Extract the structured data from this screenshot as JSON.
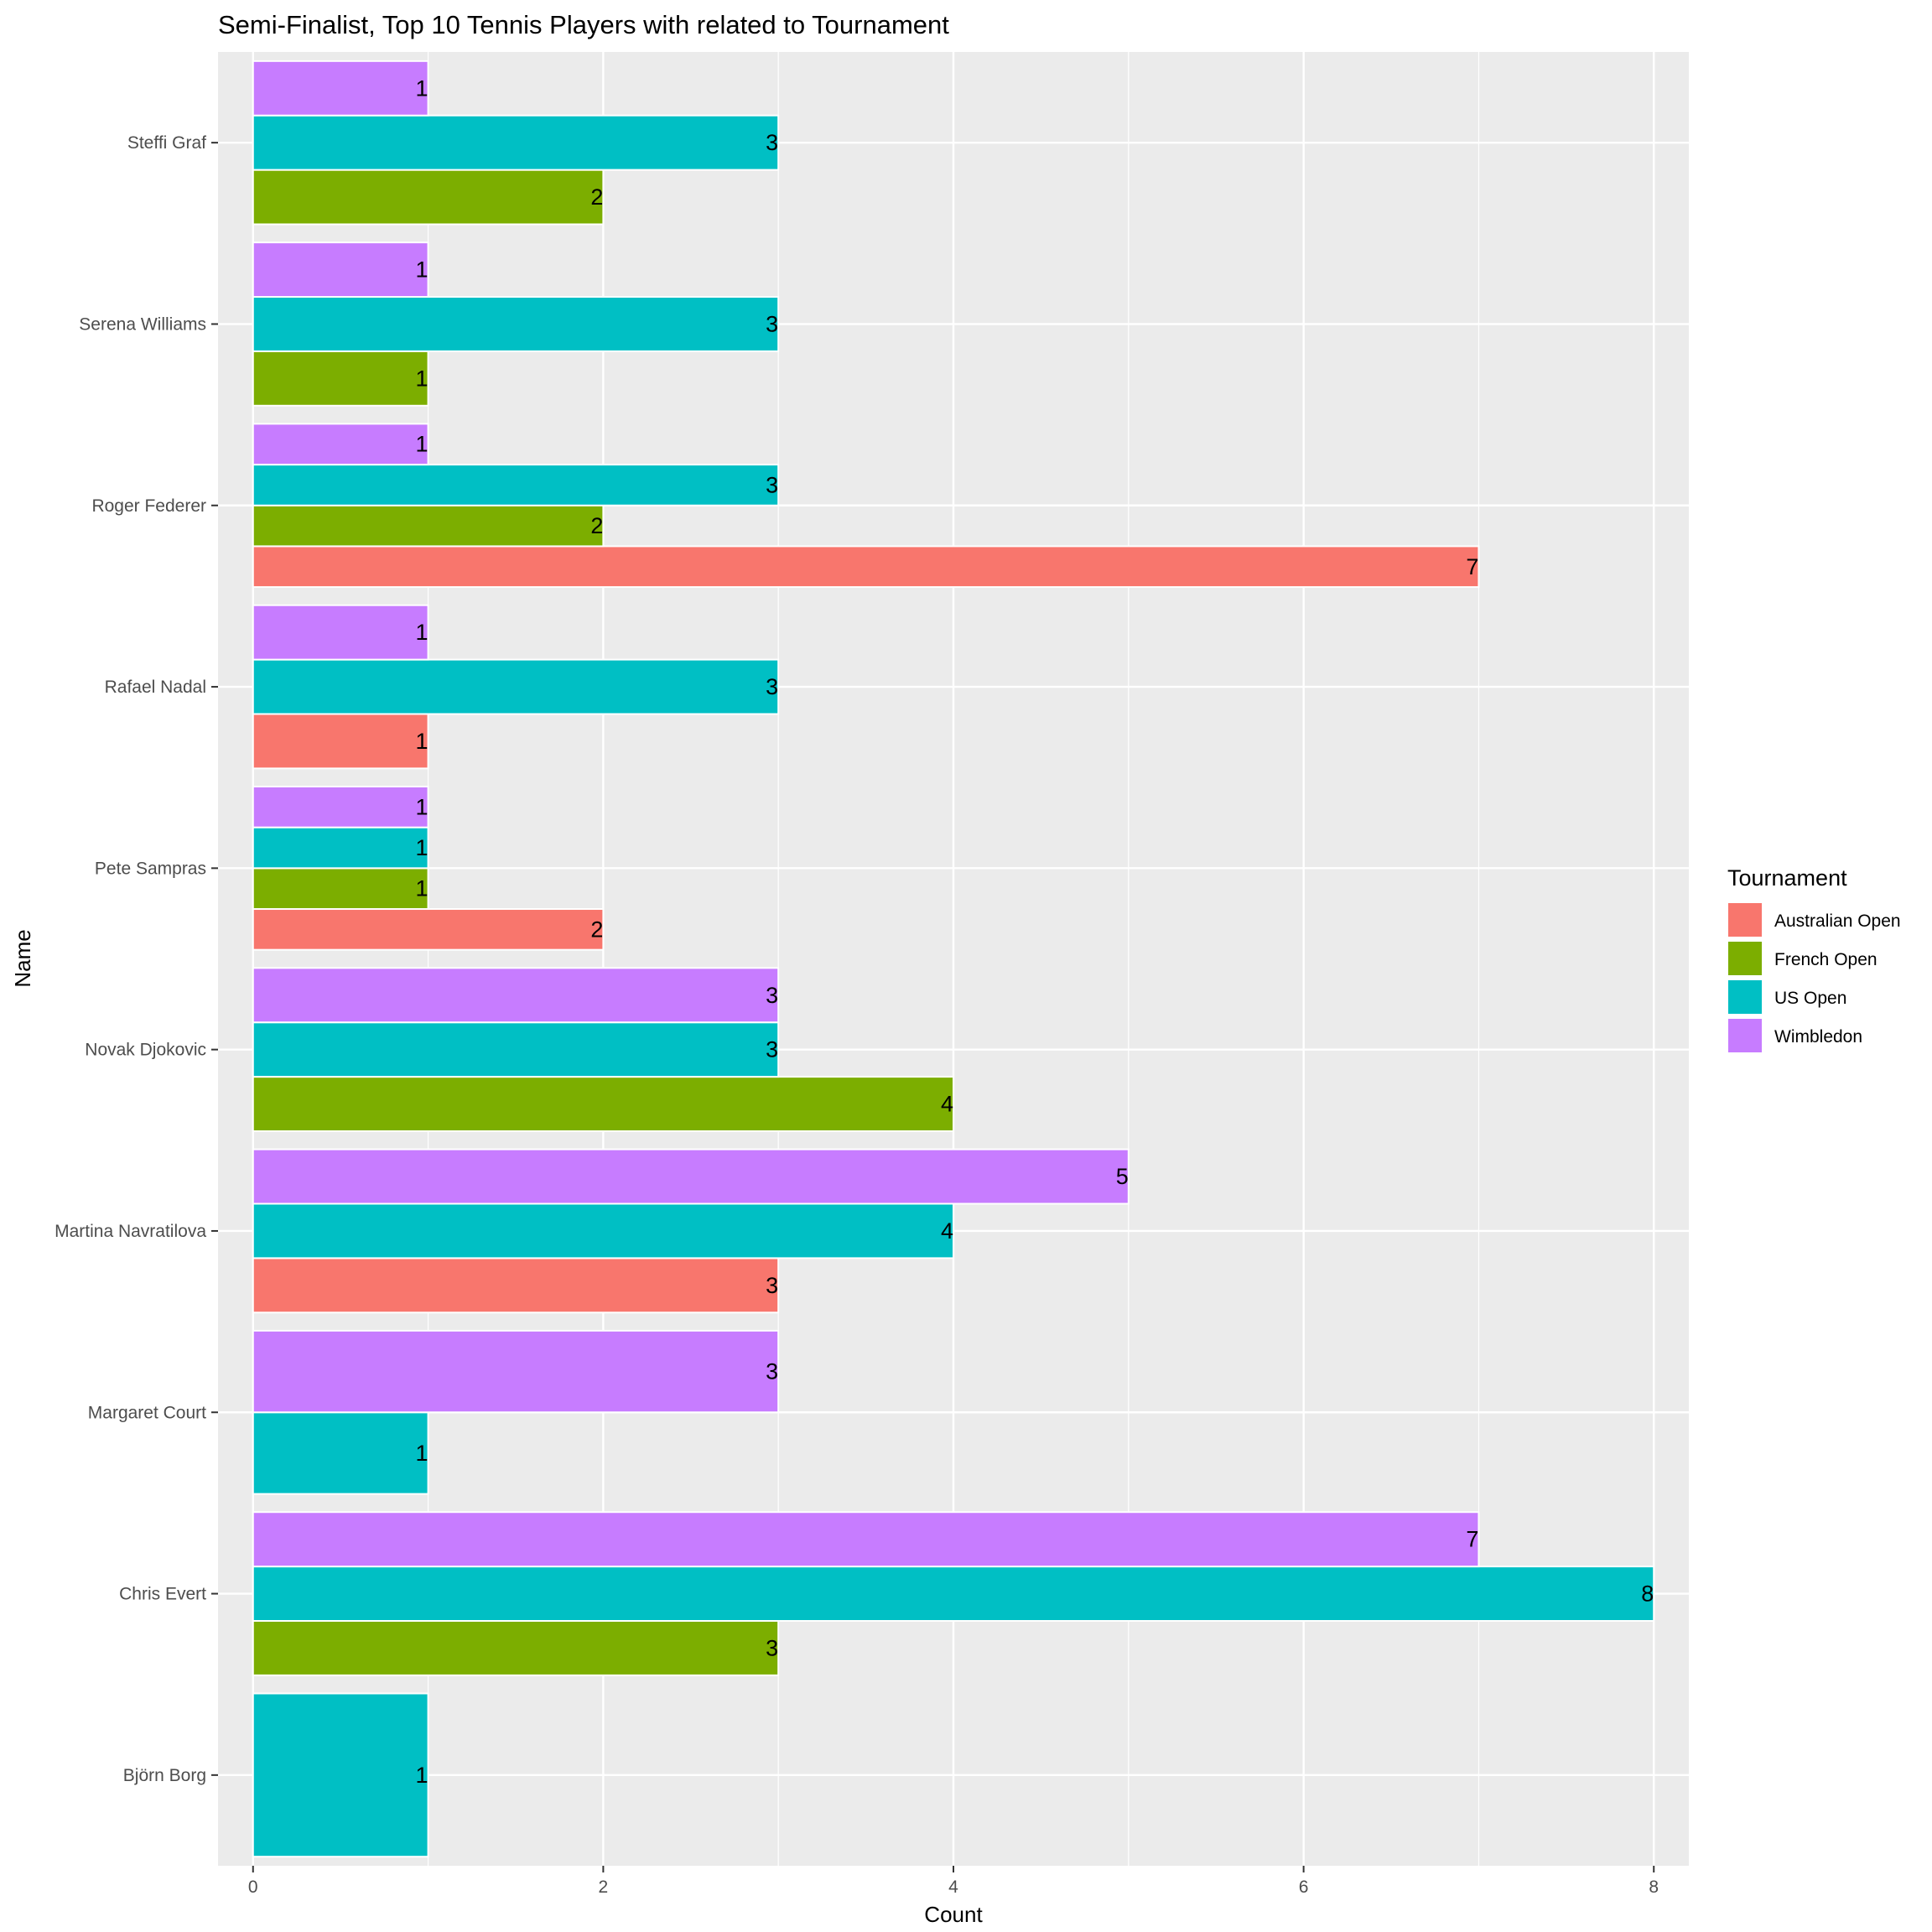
{
  "chart_data": {
    "type": "bar",
    "orientation": "horizontal",
    "title": "Semi-Finalist, Top 10 Tennis Players with related to Tournament",
    "xlabel": "Count",
    "ylabel": "Name",
    "xlim": [
      -0.2,
      8.2
    ],
    "x_ticks": [
      "0",
      "2",
      "4",
      "6",
      "8"
    ],
    "grid": true,
    "legend": {
      "title": "Tournament",
      "placement": "right",
      "entries": [
        "Australian Open",
        "French Open",
        "US Open",
        "Wimbledon"
      ]
    },
    "colors": {
      "Australian Open": "#F8766D",
      "French Open": "#7CAE00",
      "US Open": "#00BFC4",
      "Wimbledon": "#C77CFF",
      "panel": "#EBEBEB",
      "grid": "#FFFFFF"
    },
    "categories": [
      "Björn Borg",
      "Chris Evert",
      "Margaret Court",
      "Martina Navratilova",
      "Novak Djokovic",
      "Pete Sampras",
      "Rafael Nadal",
      "Roger Federer",
      "Serena Williams",
      "Steffi Graf"
    ],
    "series": [
      {
        "name": "Australian Open",
        "values": [
          null,
          null,
          null,
          3,
          null,
          2,
          1,
          7,
          null,
          null
        ]
      },
      {
        "name": "French Open",
        "values": [
          null,
          3,
          null,
          null,
          4,
          1,
          null,
          2,
          1,
          2
        ]
      },
      {
        "name": "US Open",
        "values": [
          1,
          8,
          1,
          4,
          3,
          1,
          3,
          3,
          3,
          3
        ]
      },
      {
        "name": "Wimbledon",
        "values": [
          null,
          7,
          3,
          5,
          3,
          1,
          1,
          1,
          1,
          1
        ]
      }
    ]
  }
}
